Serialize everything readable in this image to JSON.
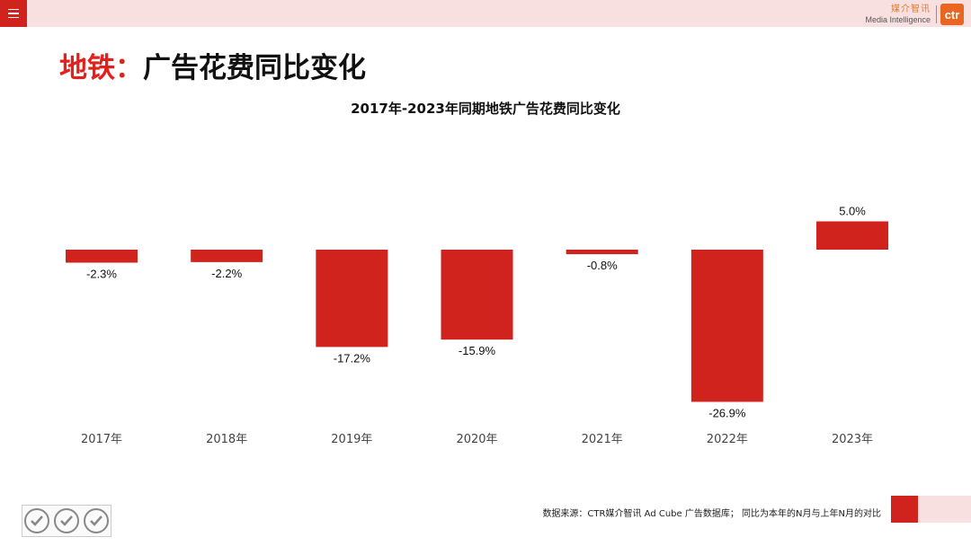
{
  "header": {
    "menu_icon": "hamburger-icon",
    "brand_cn": "媒介智讯",
    "brand_en": "Media Intelligence",
    "brand_logo": "ctr"
  },
  "page": {
    "title_prefix": "地铁：",
    "title_main": "广告花费同比变化"
  },
  "chart_data": {
    "type": "bar",
    "title": "2017年-2023年同期地铁广告花费同比变化",
    "categories": [
      "2017年",
      "2018年",
      "2019年",
      "2020年",
      "2021年",
      "2022年",
      "2023年"
    ],
    "values": [
      -2.3,
      -2.2,
      -17.2,
      -15.9,
      -0.8,
      -26.9,
      5.0
    ],
    "data_labels": [
      "-2.3%",
      "-2.2%",
      "-17.2%",
      "-15.9%",
      "-0.8%",
      "-26.9%",
      "5.0%"
    ],
    "xlabel": "",
    "ylabel": "",
    "ylim": [
      -30,
      25
    ],
    "grid": false,
    "legend": "none",
    "bar_color": "#d1231d"
  },
  "footer": {
    "source_note": "数据来源：CTR媒介智讯 Ad Cube 广告数据库；  同比为本年的N月与上年N月的对比"
  },
  "colors": {
    "accent": "#d1231d",
    "accent_light": "#f9e0e0",
    "title_red": "#e3201b"
  }
}
